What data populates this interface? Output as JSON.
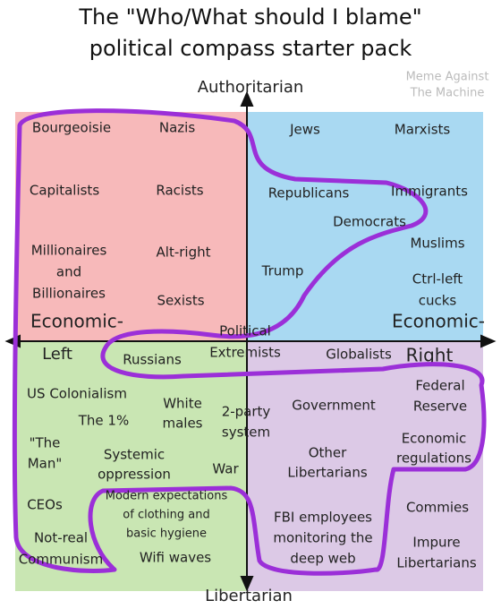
{
  "title": [
    "The \"Who/What should I blame\"",
    "political compass starter pack"
  ],
  "watermark": [
    "Meme Against",
    "The Machine"
  ],
  "axes": {
    "top": "Authoritarian",
    "bottom": "Libertarian",
    "left": [
      "Economic-",
      "Left"
    ],
    "right": [
      "Economic-",
      "Right"
    ]
  },
  "labels": [
    [
      "Bourgeoisie"
    ],
    [
      "Nazis"
    ],
    [
      "Jews"
    ],
    [
      "Marxists"
    ],
    [
      "Capitalists"
    ],
    [
      "Racists"
    ],
    [
      "Republicans"
    ],
    [
      "Immigrants"
    ],
    [
      "Democrats"
    ],
    [
      "Muslims"
    ],
    [
      "Millionaires",
      "and",
      "Billionaires"
    ],
    [
      "Alt-right"
    ],
    [
      "Trump"
    ],
    [
      "Ctrl-left",
      "cucks"
    ],
    [
      "Sexists"
    ],
    [
      "Political",
      "Extremists"
    ],
    [
      "Russians"
    ],
    [
      "Globalists"
    ],
    [
      "US Colonialism"
    ],
    [
      "The 1%"
    ],
    [
      "White",
      "males"
    ],
    [
      "2-party",
      "system"
    ],
    [
      "Government"
    ],
    [
      "Federal",
      "Reserve"
    ],
    [
      "\"The",
      "Man\""
    ],
    [
      "Systemic",
      "oppression"
    ],
    [
      "Economic",
      "regulations"
    ],
    [
      "Other",
      "Libertarians"
    ],
    [
      "War"
    ],
    [
      "CEOs"
    ],
    [
      "Modern expectations",
      "of clothing and",
      "basic hygiene"
    ],
    [
      "Commies"
    ],
    [
      "FBI employees",
      "monitoring the",
      "deep web"
    ],
    [
      "Not-real",
      "Communism"
    ],
    [
      "Wifi waves"
    ],
    [
      "Impure",
      "Libertarians"
    ]
  ]
}
